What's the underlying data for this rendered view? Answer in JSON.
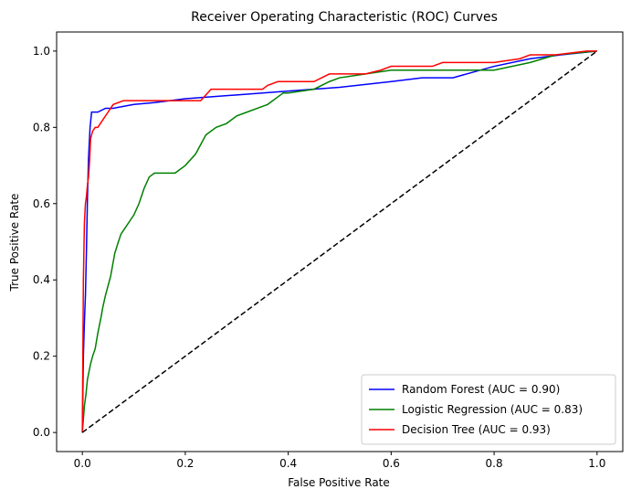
{
  "chart_data": {
    "type": "line",
    "title": "Receiver Operating Characteristic (ROC) Curves",
    "xlabel": "False Positive Rate",
    "ylabel": "True Positive Rate",
    "xlim": [
      -0.05,
      1.05
    ],
    "ylim": [
      -0.05,
      1.05
    ],
    "xticks": [
      "0.0",
      "0.2",
      "0.4",
      "0.6",
      "0.8",
      "1.0"
    ],
    "yticks": [
      "0.0",
      "0.2",
      "0.4",
      "0.6",
      "0.8",
      "1.0"
    ],
    "xtick_values": [
      0,
      0.2,
      0.4,
      0.6,
      0.8,
      1.0
    ],
    "ytick_values": [
      0,
      0.2,
      0.4,
      0.6,
      0.8,
      1.0
    ],
    "grid": false,
    "legend_position": "lower-right",
    "series": [
      {
        "name": "Random Forest (AUC = 0.90)",
        "color": "#0000ff",
        "x": [
          0,
          0.002,
          0.004,
          0.006,
          0.008,
          0.01,
          0.012,
          0.015,
          0.018,
          0.022,
          0.03,
          0.045,
          0.06,
          0.1,
          0.14,
          0.2,
          0.3,
          0.4,
          0.5,
          0.6,
          0.66,
          0.72,
          0.8,
          0.87,
          0.93,
          1.0
        ],
        "y": [
          0,
          0.2,
          0.29,
          0.36,
          0.48,
          0.62,
          0.72,
          0.8,
          0.84,
          0.84,
          0.84,
          0.85,
          0.85,
          0.86,
          0.865,
          0.875,
          0.885,
          0.895,
          0.905,
          0.92,
          0.93,
          0.93,
          0.96,
          0.98,
          0.99,
          1.0
        ]
      },
      {
        "name": "Logistic Regression (AUC = 0.83)",
        "color": "#008000",
        "x": [
          0,
          0.004,
          0.007,
          0.01,
          0.013,
          0.016,
          0.02,
          0.025,
          0.03,
          0.036,
          0.04,
          0.045,
          0.055,
          0.063,
          0.07,
          0.075,
          0.08,
          0.09,
          0.1,
          0.11,
          0.12,
          0.13,
          0.14,
          0.16,
          0.18,
          0.2,
          0.22,
          0.24,
          0.26,
          0.28,
          0.3,
          0.32,
          0.34,
          0.36,
          0.37,
          0.38,
          0.39,
          0.4,
          0.45,
          0.48,
          0.5,
          0.6,
          0.7,
          0.8,
          0.87,
          0.92,
          1.0
        ],
        "y": [
          0,
          0.07,
          0.1,
          0.14,
          0.16,
          0.18,
          0.2,
          0.22,
          0.26,
          0.3,
          0.33,
          0.36,
          0.41,
          0.47,
          0.5,
          0.52,
          0.53,
          0.55,
          0.57,
          0.6,
          0.64,
          0.67,
          0.68,
          0.68,
          0.68,
          0.7,
          0.73,
          0.78,
          0.8,
          0.81,
          0.83,
          0.84,
          0.85,
          0.86,
          0.87,
          0.88,
          0.89,
          0.89,
          0.9,
          0.92,
          0.93,
          0.95,
          0.95,
          0.95,
          0.97,
          0.99,
          1.0
        ]
      },
      {
        "name": "Decision Tree (AUC = 0.93)",
        "color": "#ff0000",
        "x": [
          0,
          0.002,
          0.004,
          0.006,
          0.008,
          0.01,
          0.012,
          0.014,
          0.016,
          0.02,
          0.025,
          0.03,
          0.04,
          0.05,
          0.06,
          0.08,
          0.1,
          0.15,
          0.2,
          0.23,
          0.25,
          0.3,
          0.35,
          0.36,
          0.38,
          0.4,
          0.45,
          0.48,
          0.5,
          0.55,
          0.58,
          0.6,
          0.65,
          0.68,
          0.7,
          0.75,
          0.8,
          0.85,
          0.87,
          0.92,
          0.98,
          1.0
        ],
        "y": [
          0,
          0.4,
          0.55,
          0.6,
          0.62,
          0.65,
          0.67,
          0.71,
          0.77,
          0.79,
          0.8,
          0.8,
          0.82,
          0.84,
          0.86,
          0.87,
          0.87,
          0.87,
          0.87,
          0.87,
          0.9,
          0.9,
          0.9,
          0.91,
          0.92,
          0.92,
          0.92,
          0.94,
          0.94,
          0.94,
          0.95,
          0.96,
          0.96,
          0.96,
          0.97,
          0.97,
          0.97,
          0.98,
          0.99,
          0.99,
          1.0,
          1.0
        ]
      },
      {
        "name": "",
        "color": "#000000",
        "dashed": true,
        "x": [
          0,
          1
        ],
        "y": [
          0,
          1
        ]
      }
    ]
  }
}
